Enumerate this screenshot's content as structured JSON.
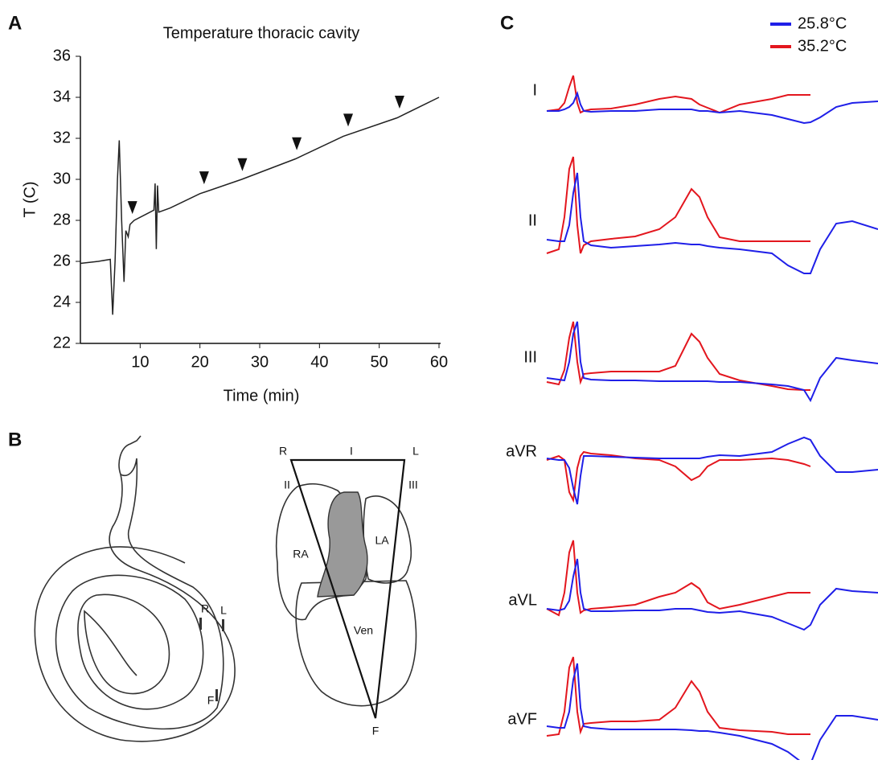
{
  "panel_labels": [
    "A",
    "B",
    "C"
  ],
  "chart_data": [
    {
      "type": "line",
      "title": "Temperature thoracic cavity",
      "xlabel": "Time (min)",
      "ylabel": "T (C)",
      "color": "#222222",
      "x": [
        0,
        3,
        5,
        5.4,
        5.8,
        6.2,
        6.5,
        6.9,
        7.3,
        7.6,
        8,
        8.3,
        9,
        11,
        12.3,
        12.5,
        12.7,
        12.9,
        13.1,
        15,
        20,
        27,
        36,
        44,
        53,
        60
      ],
      "values": [
        25.9,
        26.0,
        26.1,
        23.4,
        26,
        30,
        31.9,
        28,
        25,
        27.5,
        27.2,
        27.8,
        28,
        28.3,
        28.5,
        29.8,
        26.6,
        29.7,
        28.4,
        28.6,
        29.3,
        30,
        31,
        32.1,
        33,
        34
      ],
      "arrow_x": [
        8.7,
        20.7,
        27.1,
        36.2,
        44.8,
        53.4
      ],
      "xlim": [
        0,
        60
      ],
      "xticks": [
        10,
        20,
        30,
        40,
        50,
        60
      ],
      "ylim": [
        22,
        36
      ],
      "yticks": [
        22,
        24,
        26,
        28,
        30,
        32,
        34,
        36
      ]
    },
    {
      "type": "ecg",
      "leads": [
        "I",
        "II",
        "III",
        "aVR",
        "aVL",
        "aVF"
      ],
      "x": [
        0,
        15,
        22,
        28,
        33,
        38,
        42,
        46,
        55,
        80,
        110,
        140,
        160,
        180,
        190,
        200,
        215,
        240,
        280,
        300,
        320,
        328,
        340,
        360,
        380,
        412
      ],
      "series": [
        {
          "name": "25.8°C",
          "color": "#1f1fe8",
          "values": [
            [
              0,
              0,
              2,
              5,
              10,
              22,
              8,
              0,
              -1,
              0,
              0,
              2,
              2,
              2,
              0,
              0,
              -2,
              0,
              -5,
              -10,
              -15,
              -14,
              -8,
              5,
              10,
              12
            ],
            [
              2,
              0,
              0,
              20,
              60,
              85,
              30,
              0,
              -5,
              -8,
              -6,
              -4,
              -2,
              -4,
              -4,
              -6,
              -8,
              -10,
              -15,
              -30,
              -40,
              -40,
              -10,
              22,
              25,
              15
            ],
            [
              0,
              -2,
              -3,
              20,
              55,
              70,
              20,
              0,
              -2,
              -3,
              -3,
              -4,
              -4,
              -4,
              -4,
              -4,
              -5,
              -5,
              -8,
              -10,
              -15,
              -28,
              0,
              25,
              22,
              18
            ],
            [
              2,
              0,
              0,
              -10,
              -35,
              -55,
              -20,
              5,
              5,
              4,
              3,
              2,
              2,
              2,
              2,
              4,
              6,
              5,
              10,
              20,
              28,
              25,
              5,
              -15,
              -15,
              -12
            ],
            [
              0,
              -2,
              0,
              10,
              40,
              62,
              20,
              0,
              -3,
              -3,
              -2,
              -2,
              0,
              0,
              -2,
              -4,
              -5,
              -3,
              -10,
              -18,
              -26,
              -20,
              5,
              25,
              22,
              20
            ],
            [
              2,
              0,
              0,
              20,
              60,
              80,
              25,
              2,
              0,
              -2,
              -2,
              -2,
              -2,
              -3,
              -4,
              -4,
              -6,
              -10,
              -20,
              -30,
              -45,
              -45,
              -15,
              15,
              15,
              10
            ]
          ]
        },
        {
          "name": "35.2°C",
          "color": "#e3161e",
          "values": [
            [
              0,
              2,
              10,
              30,
              44,
              10,
              -2,
              0,
              2,
              3,
              8,
              15,
              18,
              15,
              8,
              4,
              -2,
              8,
              15,
              20,
              20,
              20,
              null,
              null,
              null,
              null
            ],
            [
              -15,
              -10,
              30,
              90,
              105,
              20,
              -15,
              -5,
              0,
              3,
              6,
              15,
              30,
              65,
              55,
              30,
              5,
              0,
              0,
              0,
              0,
              0,
              null,
              null,
              null,
              null
            ],
            [
              -5,
              -8,
              10,
              50,
              70,
              20,
              -5,
              5,
              6,
              8,
              8,
              8,
              15,
              55,
              45,
              25,
              5,
              -3,
              -10,
              -14,
              -15,
              -15,
              null,
              null,
              null,
              null
            ],
            [
              0,
              5,
              0,
              -40,
              -50,
              -10,
              5,
              10,
              8,
              6,
              2,
              0,
              -8,
              -25,
              -20,
              -8,
              0,
              0,
              2,
              0,
              -5,
              -8,
              null,
              null,
              null,
              null
            ],
            [
              0,
              -8,
              20,
              70,
              85,
              20,
              -5,
              -2,
              0,
              2,
              5,
              15,
              20,
              32,
              25,
              8,
              0,
              5,
              15,
              20,
              20,
              20,
              null,
              null,
              null,
              null
            ],
            [
              -10,
              -8,
              20,
              75,
              88,
              20,
              -5,
              5,
              6,
              8,
              8,
              10,
              25,
              58,
              45,
              20,
              0,
              -3,
              -5,
              -8,
              -8,
              -8,
              null,
              null,
              null,
              null
            ]
          ]
        }
      ]
    }
  ],
  "diagram": {
    "triangle": {
      "R": "R",
      "I": "I",
      "L": "L",
      "II": "II",
      "III": "III",
      "F": "F"
    },
    "chambers": {
      "RA": "RA",
      "LA": "LA",
      "Ven": "Ven"
    },
    "electrodes": {
      "R": "R",
      "L": "L",
      "F": "F"
    }
  }
}
